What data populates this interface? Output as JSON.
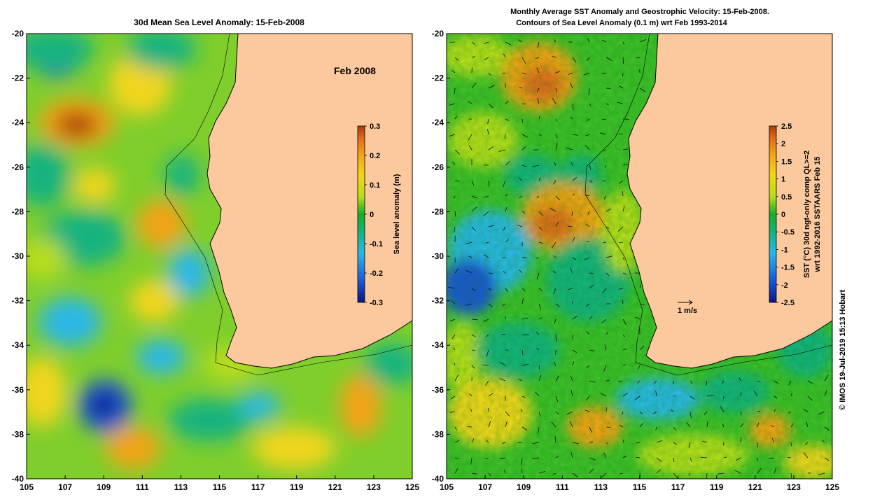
{
  "left_panel": {
    "title": "30d Mean Sea Level Anomaly: 15-Feb-2008",
    "inset_label": "Feb 2008",
    "colorbar_label": "Sea level anomaly (m)",
    "colorbar_ticks": [
      "0.3",
      "0.2",
      "0.1",
      "0",
      "-0.1",
      "-0.2",
      "-0.3"
    ]
  },
  "right_panel": {
    "title_line1": "Monthly Average SST Anomaly  and Geostrophic Velocity: 15-Feb-2008.",
    "title_line2": "Contours of Sea Level Anomaly (0.1 m) wrt Feb 1993-2014",
    "colorbar_label_line1": "SST (°C) 30d ngt-only comp QL>=2",
    "colorbar_label_line2": "wrt 1992-2016 SSTAARS Feb 15",
    "colorbar_ticks": [
      "2.5",
      "2",
      "1.5",
      "1",
      "0.5",
      "0",
      "-0.5",
      "-1",
      "-1.5",
      "-2",
      "-2.5"
    ],
    "velocity_scale_label": "1 m/s"
  },
  "axes": {
    "x_ticks": [
      "105",
      "107",
      "109",
      "111",
      "113",
      "115",
      "117",
      "119",
      "121",
      "123",
      "125"
    ],
    "y_ticks": [
      "-20",
      "-22",
      "-24",
      "-26",
      "-28",
      "-30",
      "-32",
      "-34",
      "-36",
      "-38",
      "-40"
    ]
  },
  "credit": "© IMOS 19-Jul-2019 15:13 Hobart",
  "colors": {
    "land": "#fbc99d",
    "sla_colormap": [
      "#0a1680",
      "#1b56d6",
      "#29b7e6",
      "#12b37f",
      "#17ad29",
      "#b7dd1b",
      "#f2d51a",
      "#f3a317",
      "#e36a1b",
      "#a83b10"
    ],
    "sst_colormap": [
      "#0a1680",
      "#1b56d6",
      "#29b7e6",
      "#12b37f",
      "#17ad29",
      "#b7dd1b",
      "#f2d51a",
      "#f3a317",
      "#e36a1b",
      "#a83b10"
    ]
  }
}
